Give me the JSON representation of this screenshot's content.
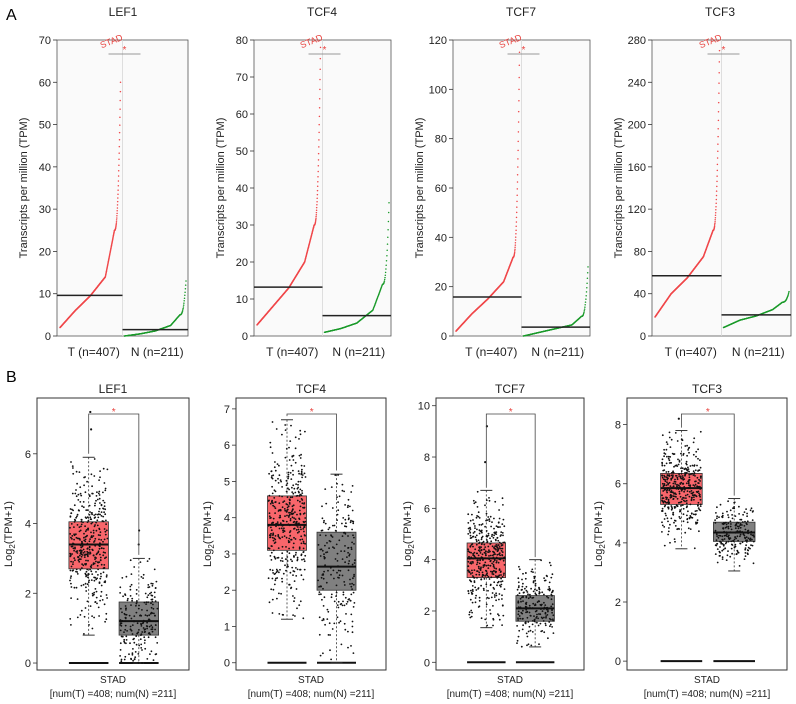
{
  "figure": {
    "panel_labels": [
      "A",
      "B"
    ],
    "ylabel_a": "Transcripts per million (TPM)",
    "ylabel_b_prefix": "Log",
    "ylabel_b_sub": "2",
    "ylabel_b_suffix": "(TPM+1)",
    "significance_mark": "*",
    "dataset_label": "STAD",
    "colors": {
      "tumor": "#f0474a",
      "normal": "#1a9a2a",
      "tumor_box": "#f8666b",
      "normal_box": "#808080",
      "accent": "#e8413d"
    }
  },
  "chart_data": [
    {
      "type": "scatter",
      "panel": "A",
      "title": "LEF1",
      "categories": [
        "T (n=407)",
        "N (n=211)"
      ],
      "ylim": [
        0,
        70
      ],
      "yticks": [
        0,
        10,
        20,
        30,
        40,
        50,
        60,
        70
      ],
      "tumor": {
        "n": 407,
        "min": 2,
        "q25": 6,
        "median": 9.5,
        "q75": 14,
        "q90": 25,
        "max": 60,
        "mean": 9.6
      },
      "normal": {
        "n": 211,
        "min": 0,
        "q25": 0.5,
        "median": 1.2,
        "q75": 2.5,
        "q90": 5,
        "max": 13,
        "mean": 1.5
      },
      "significant": true
    },
    {
      "type": "scatter",
      "panel": "A",
      "title": "TCF4",
      "categories": [
        "T (n=407)",
        "N (n=211)"
      ],
      "ylim": [
        0,
        80
      ],
      "yticks": [
        0,
        10,
        20,
        30,
        40,
        50,
        60,
        70,
        80
      ],
      "tumor": {
        "n": 407,
        "min": 3,
        "q25": 8,
        "median": 13,
        "q75": 20,
        "q90": 30,
        "max": 78,
        "mean": 13.2
      },
      "normal": {
        "n": 211,
        "min": 1,
        "q25": 2,
        "median": 3.5,
        "q75": 7,
        "q90": 14,
        "max": 36,
        "mean": 5.5
      },
      "significant": true
    },
    {
      "type": "scatter",
      "panel": "A",
      "title": "TCF7",
      "categories": [
        "T (n=407)",
        "N (n=211)"
      ],
      "ylim": [
        0,
        120
      ],
      "yticks": [
        0,
        20,
        40,
        60,
        80,
        100,
        120
      ],
      "tumor": {
        "n": 407,
        "min": 2,
        "q25": 9,
        "median": 15,
        "q75": 22,
        "q90": 32,
        "max": 115,
        "mean": 15.8
      },
      "normal": {
        "n": 211,
        "min": 0,
        "q25": 1.5,
        "median": 3,
        "q75": 4.5,
        "q90": 8,
        "max": 28,
        "mean": 3.6
      },
      "significant": true
    },
    {
      "type": "scatter",
      "panel": "A",
      "title": "TCF3",
      "categories": [
        "T (n=407)",
        "N (n=211)"
      ],
      "ylim": [
        0,
        280
      ],
      "yticks": [
        0,
        40,
        80,
        120,
        160,
        200,
        240,
        280
      ],
      "tumor": {
        "n": 407,
        "min": 18,
        "q25": 40,
        "median": 55,
        "q75": 75,
        "q90": 100,
        "max": 270,
        "mean": 57
      },
      "normal": {
        "n": 211,
        "min": 8,
        "q25": 15,
        "median": 19,
        "q75": 25,
        "q90": 32,
        "max": 42,
        "mean": 20
      },
      "significant": true
    },
    {
      "type": "box",
      "panel": "B",
      "title": "LEF1",
      "ylim": [
        -0.2,
        7.6
      ],
      "yticks": [
        0,
        2,
        4,
        6
      ],
      "tumor": {
        "whisker_low": 0.8,
        "q1": 2.7,
        "median": 3.4,
        "q3": 4.05,
        "whisker_high": 5.9,
        "outliers": [
          6.7,
          7.2
        ]
      },
      "normal": {
        "whisker_low": 0,
        "q1": 0.8,
        "median": 1.2,
        "q3": 1.75,
        "whisker_high": 3.0,
        "outliers": [
          3.4,
          3.8
        ]
      },
      "xlabel": "STAD",
      "counts_label": "[num(T) =408; num(N) =211]",
      "significant": true
    },
    {
      "type": "box",
      "panel": "B",
      "title": "TCF4",
      "ylim": [
        -0.2,
        7.3
      ],
      "yticks": [
        0,
        1,
        2,
        3,
        4,
        5,
        6,
        7
      ],
      "tumor": {
        "whisker_low": 1.2,
        "q1": 3.1,
        "median": 3.8,
        "q3": 4.6,
        "whisker_high": 6.7,
        "outliers": []
      },
      "normal": {
        "whisker_low": 0,
        "q1": 2.0,
        "median": 2.65,
        "q3": 3.6,
        "whisker_high": 5.2,
        "outliers": []
      },
      "xlabel": "STAD",
      "counts_label": "[num(T) =408; num(N) =211]",
      "significant": true
    },
    {
      "type": "box",
      "panel": "B",
      "title": "TCF7",
      "ylim": [
        -0.3,
        10.3
      ],
      "yticks": [
        0,
        2,
        4,
        6,
        8,
        10
      ],
      "tumor": {
        "whisker_low": 1.35,
        "q1": 3.3,
        "median": 4.05,
        "q3": 4.65,
        "whisker_high": 6.7,
        "outliers": [
          7.8,
          9.2
        ]
      },
      "normal": {
        "whisker_low": 0.6,
        "q1": 1.6,
        "median": 2.1,
        "q3": 2.6,
        "whisker_high": 4.0,
        "outliers": []
      },
      "xlabel": "STAD",
      "counts_label": "[num(T) =408; num(N) =211]",
      "significant": true
    },
    {
      "type": "box",
      "panel": "B",
      "title": "TCF3",
      "ylim": [
        -0.3,
        8.9
      ],
      "yticks": [
        0,
        2,
        4,
        6,
        8
      ],
      "tumor": {
        "whisker_low": 3.8,
        "q1": 5.3,
        "median": 5.85,
        "q3": 6.35,
        "whisker_high": 7.8,
        "outliers": [
          8.2
        ]
      },
      "normal": {
        "whisker_low": 3.05,
        "q1": 4.05,
        "median": 4.35,
        "q3": 4.7,
        "whisker_high": 5.5,
        "outliers": []
      },
      "xlabel": "STAD",
      "counts_label": "[num(T) =408; num(N) =211]",
      "significant": true
    }
  ]
}
